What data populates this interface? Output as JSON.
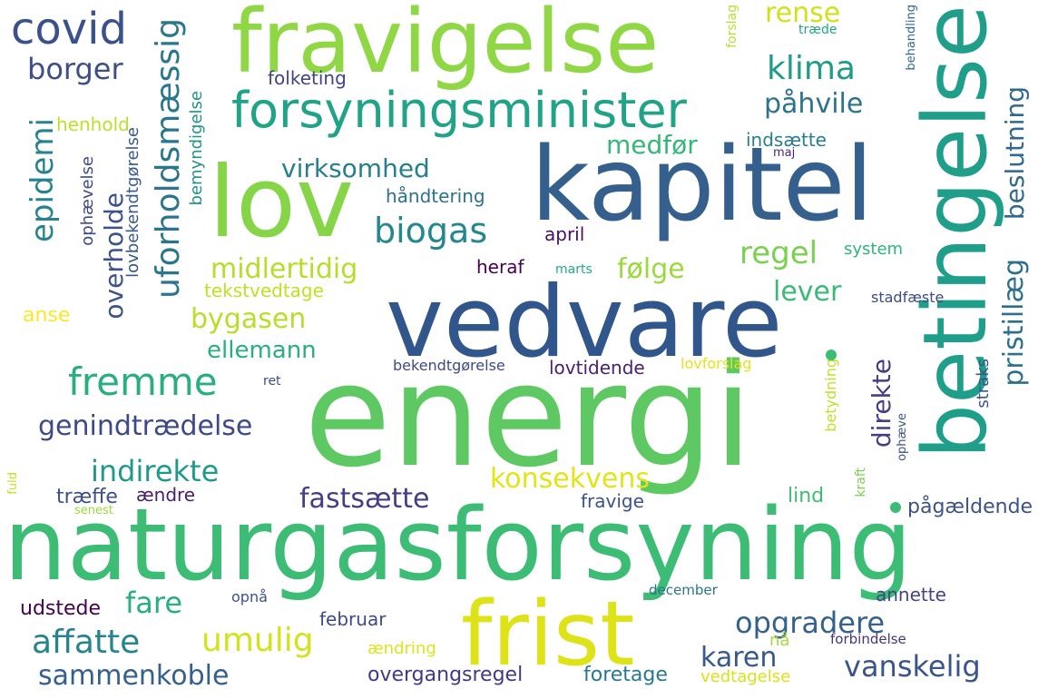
{
  "words": {
    "energi": "energi",
    "naturgasforsyning": "naturgasforsyning",
    "kapitel": "kapitel",
    "vedvare": "vedvare",
    "lov": "lov",
    "fravigelse": "fravigelse",
    "betingelse": "betingelse",
    "frist": "frist",
    "forsyningsminister": "forsyningsminister",
    "covid": "covid",
    "borger": "borger",
    "klima": "klima",
    "rense": "rense",
    "påhvile": "påhvile",
    "medfør": "medfør",
    "folketing": "folketing",
    "henhold": "henhold",
    "epidemi": "epidemi",
    "uforholdsmæssig": "uforholdsmæssig",
    "virksomhed": "virksomhed",
    "biogas": "biogas",
    "midlertidig": "midlertidig",
    "overholde": "overholde",
    "bygasen": "bygasen",
    "ellemann": "ellemann",
    "tekstvedtage": "tekstvedtage",
    "fremme": "fremme",
    "genindtrædelse": "genindtrædelse",
    "indirekte": "indirekte",
    "fastsætte": "fastsætte",
    "konsekvens": "konsekvens",
    "fare": "fare",
    "affatte": "affatte",
    "umulig": "umulig",
    "sammenkoble": "sammenkoble",
    "opgradere": "opgradere",
    "karen": "karen",
    "vanskelig": "vanskelig",
    "regel": "regel",
    "lever": "lever",
    "følge": "følge",
    "beslutning": "beslutning",
    "pristillæg": "pristillæg",
    "direkte": "direkte",
    "indsætte": "indsætte",
    "håndtering": "håndtering",
    "april": "april",
    "heraf": "heraf",
    "system": "system",
    "stadfæste": "stadfæste",
    "lovforslag": "lovforslag",
    "betydning": "betydning",
    "straks": "straks",
    "lovtidende": "lovtidende",
    "bekendtgørelse": "bekendtgørelse",
    "ret": "ret",
    "marts": "marts",
    "lind": "lind",
    "pågældende": "pågældende",
    "fravige": "fravige",
    "træffe": "træffe",
    "ændre": "ændre",
    "senest": "senest",
    "fuld": "fuld",
    "anse": "anse",
    "ophævelse": "ophævelse",
    "lovbekendtgørelse": "lovbekendtgørelse",
    "bemyndigelse": "bemyndigelse",
    "udstede": "udstede",
    "opnå": "opnå",
    "februar": "februar",
    "ændring": "ændring",
    "nå": "nå",
    "overgangsregel": "overgangsregel",
    "foretage": "foretage",
    "vedtagelse": "vedtagelse",
    "forbindelse": "forbindelse",
    "december": "december",
    "annette": "annette",
    "kraft": "kraft",
    "ophæve": "ophæve",
    "forslag": "forslag",
    "træde": "træde",
    "behandling": "behandling",
    "maj": "maj"
  }
}
